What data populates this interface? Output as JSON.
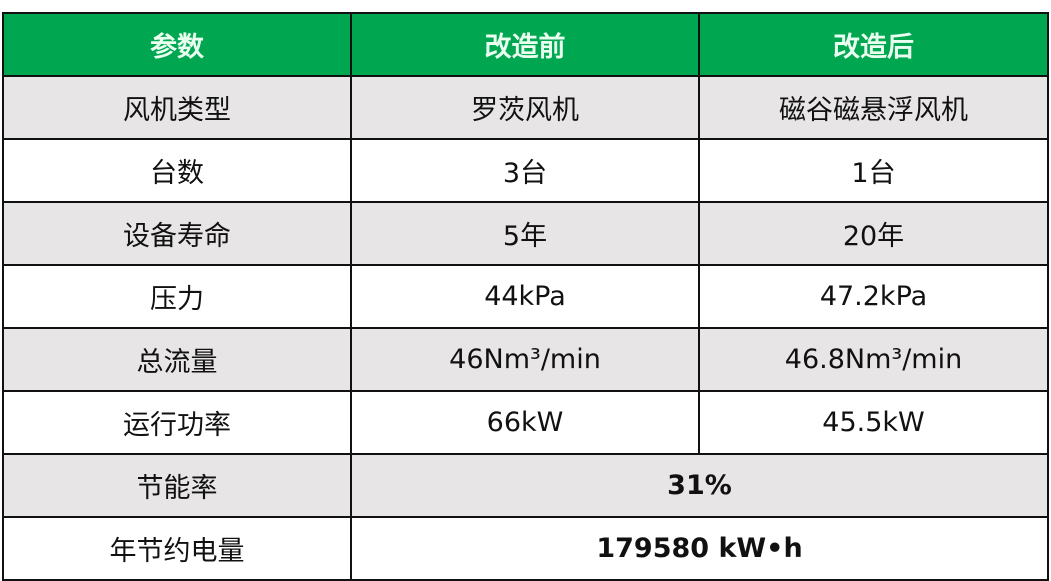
{
  "header_color": "#00a650",
  "headers": [
    "参数",
    "改造前",
    "改造后"
  ],
  "rows": [
    [
      "风机类型",
      "罗茨风机",
      "磁谷磁悬浮风机"
    ],
    [
      "台数",
      "3台",
      "1台"
    ],
    [
      "设备寿命",
      "5年",
      "20年"
    ],
    [
      "压力",
      "44kPa",
      "47.2kPa"
    ],
    [
      "总流量",
      "46Nm³/min",
      "46.8Nm³/min"
    ],
    [
      "运行功率",
      "66kW",
      "45.5kW"
    ]
  ],
  "summary_rows": [
    [
      "节能率",
      "31%"
    ],
    [
      "年节约电量",
      "179580 kW•h"
    ]
  ]
}
